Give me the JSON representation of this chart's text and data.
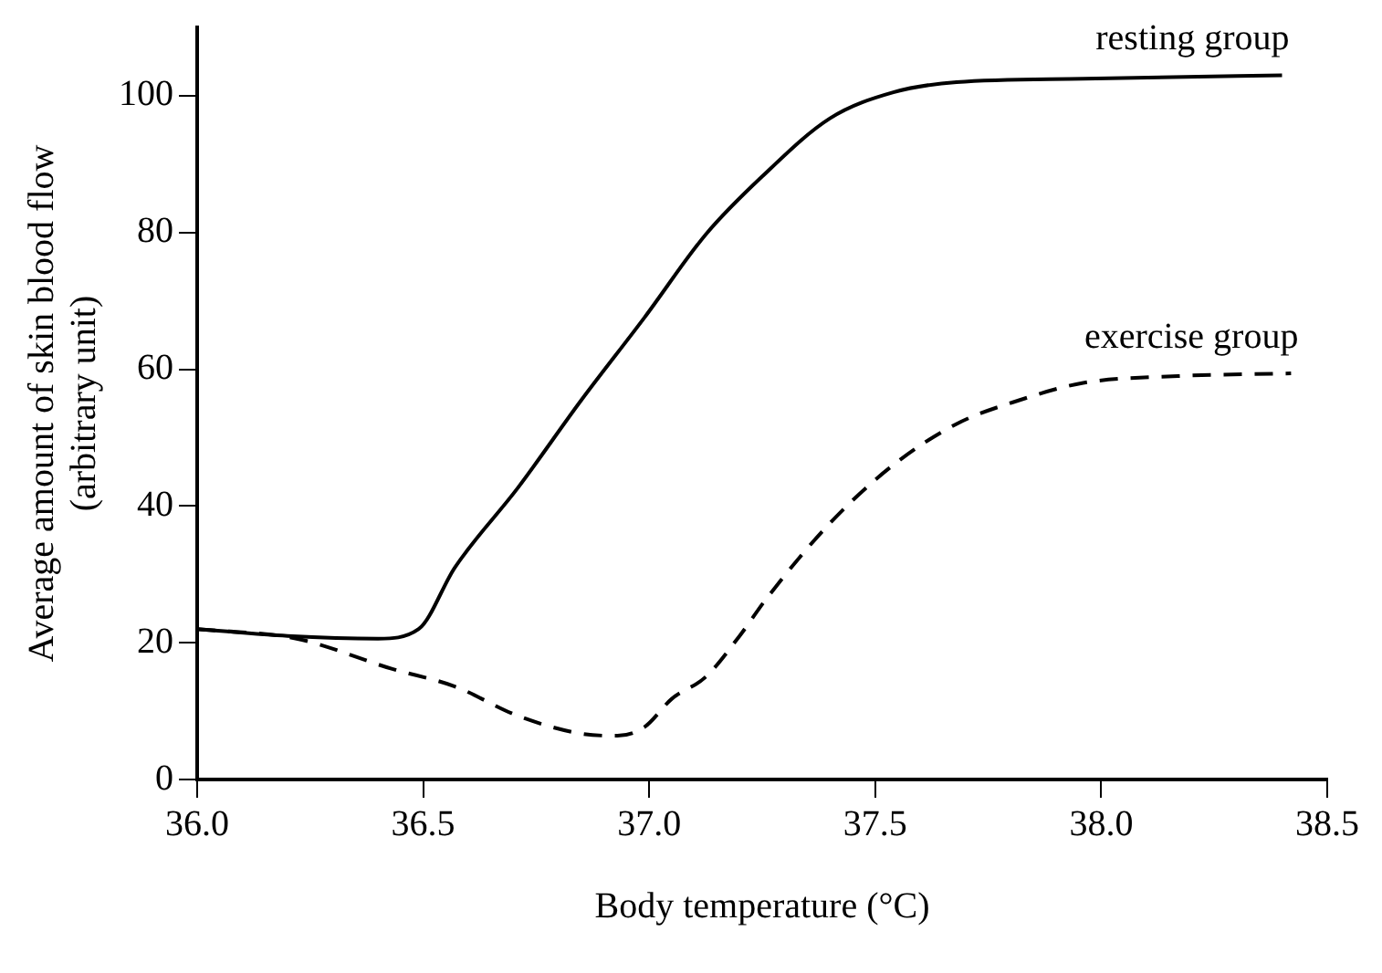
{
  "chart_data": {
    "type": "line",
    "xlabel": "Body temperature (°C)",
    "ylabel": "Average amount of skin blood flow\n(arbitrary unit)",
    "xlim": [
      36,
      38.5
    ],
    "xticks": [
      {
        "value": 36,
        "label": "36.0"
      },
      {
        "value": 36.5,
        "label": "36.5"
      },
      {
        "value": 37,
        "label": "37.0"
      },
      {
        "value": 37.5,
        "label": "37.5"
      },
      {
        "value": 38,
        "label": "38.0"
      },
      {
        "value": 38.5,
        "label": "38.5"
      }
    ],
    "ylim": [
      0,
      110
    ],
    "yticks": [
      0,
      20,
      40,
      60,
      80,
      100
    ],
    "grid": false,
    "legend": false,
    "marker": "none",
    "series": [
      {
        "name": "resting group",
        "color": "#000000",
        "line_style": "solid",
        "x": [
          36.0,
          36.2,
          36.4,
          36.49,
          36.57,
          36.71,
          36.85,
          36.99,
          37.125,
          37.25,
          37.4,
          37.54,
          37.68,
          37.96,
          38.4
        ],
        "values": [
          22,
          21,
          20.6,
          22,
          31,
          42.7,
          55.5,
          67.6,
          79.7,
          88.2,
          96.7,
          100.5,
          102,
          102.5,
          103
        ]
      },
      {
        "name": "exercise group",
        "color": "#000000",
        "line_style": "dashed",
        "x": [
          36.0,
          36.22,
          36.43,
          36.57,
          36.71,
          36.85,
          36.93,
          36.99,
          37.05,
          37.125,
          37.2,
          37.26,
          37.4,
          37.54,
          37.68,
          37.82,
          37.96,
          38.17,
          38.42
        ],
        "values": [
          22,
          20.6,
          16.2,
          13.6,
          9.3,
          6.7,
          6.4,
          7.7,
          11.8,
          15,
          21,
          26.5,
          37.5,
          46,
          52,
          55.5,
          58,
          59,
          59.4
        ]
      }
    ]
  }
}
